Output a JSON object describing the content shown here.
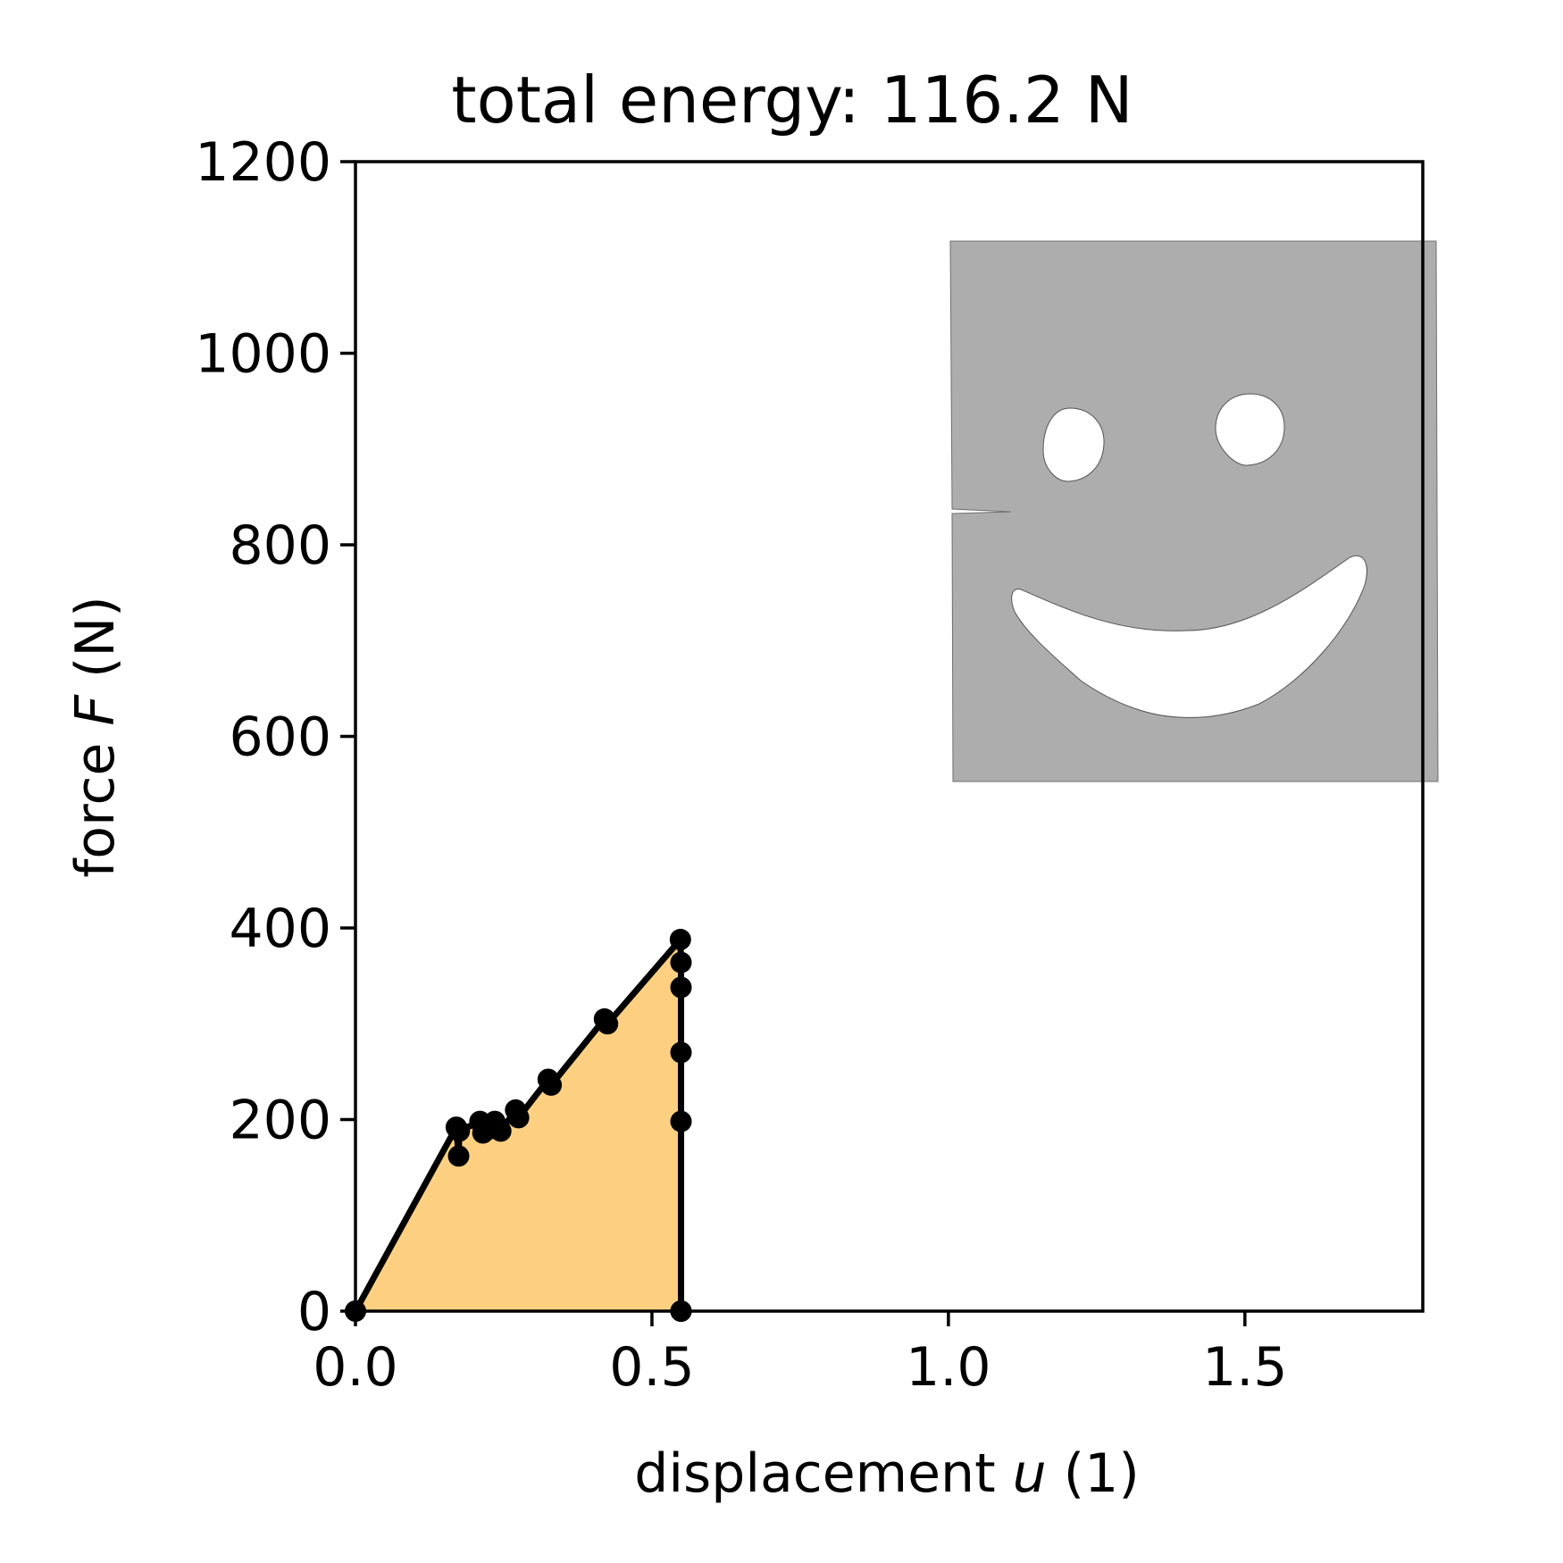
{
  "chart_data": {
    "type": "line",
    "title": "total energy: 116.2 N",
    "xlabel": {
      "prefix": "displacement ",
      "variable": "u",
      "suffix": " (1)"
    },
    "ylabel": {
      "prefix": "force ",
      "variable": "F",
      "suffix": " (N)"
    },
    "xlim": [
      0,
      1.8
    ],
    "ylim": [
      0,
      1200
    ],
    "xticks": [
      {
        "value": 0.0,
        "label": "0.0"
      },
      {
        "value": 0.5,
        "label": "0.5"
      },
      {
        "value": 1.0,
        "label": "1.0"
      },
      {
        "value": 1.5,
        "label": "1.5"
      }
    ],
    "yticks": [
      {
        "value": 0,
        "label": "0"
      },
      {
        "value": 200,
        "label": "200"
      },
      {
        "value": 400,
        "label": "400"
      },
      {
        "value": 600,
        "label": "600"
      },
      {
        "value": 800,
        "label": "800"
      },
      {
        "value": 1000,
        "label": "1000"
      },
      {
        "value": 1200,
        "label": "1200"
      }
    ],
    "grid": false,
    "fill_under_curve": true,
    "colors": {
      "line": "#000000",
      "fill": "#fdd081",
      "inset_specimen": "#adadad"
    },
    "series": [
      {
        "x": [
          0.0,
          0.17,
          0.174,
          0.175,
          0.21,
          0.215,
          0.225,
          0.235,
          0.245,
          0.27,
          0.275,
          0.325,
          0.33,
          0.42,
          0.425,
          0.548,
          0.549,
          0.549,
          0.549,
          0.549,
          0.549,
          0.549
        ],
        "y": [
          0,
          192,
          162,
          188,
          198,
          186,
          190,
          198,
          188,
          210,
          202,
          242,
          236,
          305,
          300,
          388,
          364,
          338,
          270,
          198,
          0,
          0
        ]
      }
    ],
    "inset": "specimen-with-smiley-cutouts"
  }
}
